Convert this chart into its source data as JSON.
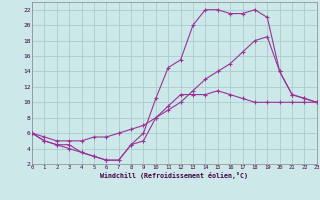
{
  "xlabel": "Windchill (Refroidissement éolien,°C)",
  "background_color": "#cde8e8",
  "grid_color": "#aacccc",
  "line_color": "#993399",
  "xmin": 0,
  "xmax": 23,
  "ymin": 2,
  "ymax": 23,
  "yticks": [
    2,
    4,
    6,
    8,
    10,
    12,
    14,
    16,
    18,
    20,
    22
  ],
  "xticks": [
    0,
    1,
    2,
    3,
    4,
    5,
    6,
    7,
    8,
    9,
    10,
    11,
    12,
    13,
    14,
    15,
    16,
    17,
    18,
    19,
    20,
    21,
    22,
    23
  ],
  "line1_x": [
    0,
    1,
    2,
    3,
    4,
    5,
    6,
    7,
    8,
    9,
    10,
    11,
    12,
    13,
    14,
    15,
    16,
    17,
    18,
    19,
    20,
    21,
    22,
    23
  ],
  "line1_y": [
    6,
    5,
    4.5,
    4,
    3.5,
    3,
    2.5,
    2.5,
    4.5,
    5,
    8,
    9.5,
    11,
    11,
    11,
    11.5,
    11,
    10.5,
    10,
    10,
    10,
    10,
    10,
    10
  ],
  "line2_x": [
    0,
    1,
    2,
    3,
    4,
    5,
    6,
    7,
    8,
    9,
    10,
    11,
    12,
    13,
    14,
    15,
    16,
    17,
    18,
    19,
    20,
    21,
    22,
    23
  ],
  "line2_y": [
    6,
    5,
    4.5,
    4.5,
    3.5,
    3,
    2.5,
    2.5,
    4.5,
    6,
    10.5,
    14.5,
    15.5,
    20,
    22,
    22,
    21.5,
    21.5,
    22,
    21,
    14,
    11,
    10.5,
    10
  ],
  "line3_x": [
    0,
    1,
    2,
    3,
    4,
    5,
    6,
    7,
    8,
    9,
    10,
    11,
    12,
    13,
    14,
    15,
    16,
    17,
    18,
    19,
    20,
    21,
    22,
    23
  ],
  "line3_y": [
    6,
    5.5,
    5,
    5,
    5,
    5.5,
    5.5,
    6,
    6.5,
    7,
    8,
    9,
    10,
    11.5,
    13,
    14,
    15,
    16.5,
    18,
    18.5,
    14,
    11,
    10.5,
    10
  ]
}
